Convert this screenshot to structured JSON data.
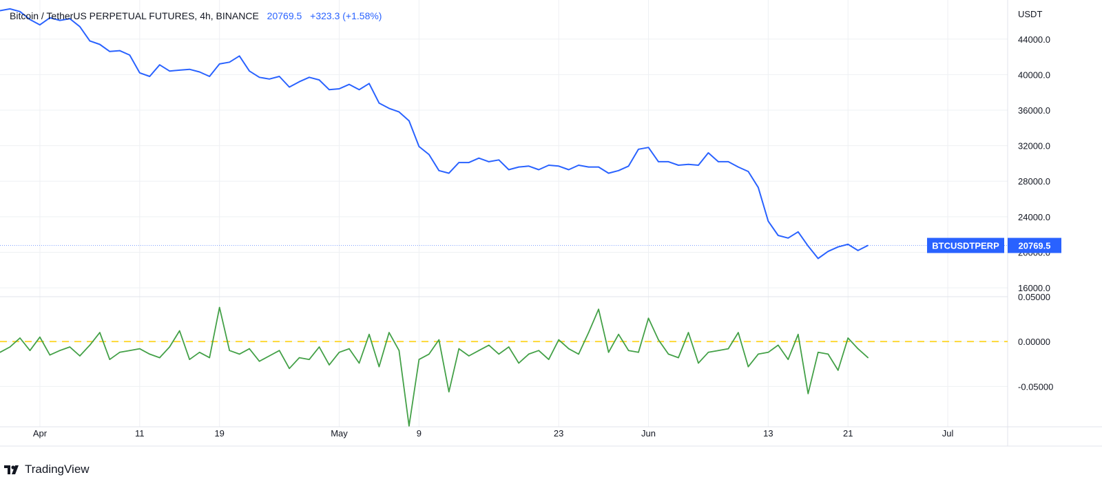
{
  "legend": {
    "symbol": "Bitcoin / TetherUS PERPETUAL FUTURES, 4h, BINANCE",
    "last": "20769.5",
    "change": "+323.3 (+1.58%)"
  },
  "price_label": {
    "ticker": "BTCUSDTPERP",
    "value": "20769.5"
  },
  "footer": {
    "brand": "TradingView"
  },
  "colors": {
    "price": "#2962ff",
    "funding": "#43a047",
    "zero_line": "#fdd835",
    "grid": "#eef0f3",
    "axis_text": "#131722",
    "label_bg": "#2962ff",
    "last_price_line": "#2962ff"
  },
  "chart_data": [
    {
      "type": "line",
      "y_axis_unit": "USDT",
      "y_ticks": [
        16000,
        20000,
        24000,
        28000,
        32000,
        36000,
        40000,
        44000
      ],
      "y_tick_labels": [
        "16000.0",
        "20000.0",
        "24000.0",
        "28000.0",
        "32000.0",
        "36000.0",
        "40000.0",
        "44000.0"
      ],
      "ylim": [
        15000,
        48400
      ],
      "x_ticks": [
        "Apr",
        "11",
        "19",
        "May",
        "9",
        "23",
        "Jun",
        "13",
        "21",
        "Jul"
      ],
      "x_tick_dates": [
        "2022-04-01",
        "2022-04-11",
        "2022-04-19",
        "2022-05-01",
        "2022-05-09",
        "2022-05-23",
        "2022-06-01",
        "2022-06-13",
        "2022-06-21",
        "2022-07-01"
      ],
      "x_range": [
        "2022-03-28",
        "2022-07-07"
      ],
      "series": [
        {
          "x": [
            "2022-03-28",
            "2022-03-29",
            "2022-03-30",
            "2022-03-31",
            "2022-04-01",
            "2022-04-02",
            "2022-04-03",
            "2022-04-04",
            "2022-04-05",
            "2022-04-06",
            "2022-04-07",
            "2022-04-08",
            "2022-04-09",
            "2022-04-10",
            "2022-04-11",
            "2022-04-12",
            "2022-04-13",
            "2022-04-14",
            "2022-04-15",
            "2022-04-16",
            "2022-04-17",
            "2022-04-18",
            "2022-04-19",
            "2022-04-20",
            "2022-04-21",
            "2022-04-22",
            "2022-04-23",
            "2022-04-24",
            "2022-04-25",
            "2022-04-26",
            "2022-04-27",
            "2022-04-28",
            "2022-04-29",
            "2022-04-30",
            "2022-05-01",
            "2022-05-02",
            "2022-05-03",
            "2022-05-04",
            "2022-05-05",
            "2022-05-06",
            "2022-05-07",
            "2022-05-08",
            "2022-05-09",
            "2022-05-10",
            "2022-05-11",
            "2022-05-12",
            "2022-05-13",
            "2022-05-14",
            "2022-05-15",
            "2022-05-16",
            "2022-05-17",
            "2022-05-18",
            "2022-05-19",
            "2022-05-20",
            "2022-05-21",
            "2022-05-22",
            "2022-05-23",
            "2022-05-24",
            "2022-05-25",
            "2022-05-26",
            "2022-05-27",
            "2022-05-28",
            "2022-05-29",
            "2022-05-30",
            "2022-05-31",
            "2022-06-01",
            "2022-06-02",
            "2022-06-03",
            "2022-06-04",
            "2022-06-05",
            "2022-06-06",
            "2022-06-07",
            "2022-06-08",
            "2022-06-09",
            "2022-06-10",
            "2022-06-11",
            "2022-06-12",
            "2022-06-13",
            "2022-06-14",
            "2022-06-15",
            "2022-06-16",
            "2022-06-17",
            "2022-06-18",
            "2022-06-19",
            "2022-06-20",
            "2022-06-21",
            "2022-06-22",
            "2022-06-23"
          ],
          "values": [
            47200,
            47400,
            47100,
            46200,
            45600,
            46400,
            46100,
            46300,
            45400,
            43800,
            43400,
            42600,
            42700,
            42200,
            40200,
            39800,
            41100,
            40400,
            40500,
            40600,
            40300,
            39800,
            41200,
            41400,
            42100,
            40400,
            39700,
            39500,
            39800,
            38600,
            39200,
            39700,
            39400,
            38300,
            38400,
            38900,
            38300,
            39000,
            36800,
            36200,
            35800,
            34800,
            31900,
            31000,
            29200,
            28900,
            30100,
            30100,
            30600,
            30200,
            30400,
            29300,
            29600,
            29700,
            29300,
            29800,
            29700,
            29300,
            29800,
            29600,
            29600,
            28900,
            29200,
            29700,
            31600,
            31800,
            30200,
            30200,
            29800,
            29900,
            29800,
            31200,
            30200,
            30200,
            29600,
            29100,
            27300,
            23500,
            21900,
            21600,
            22300,
            20700,
            19300,
            20100,
            20600,
            20900,
            20200,
            20769.5
          ]
        }
      ]
    },
    {
      "type": "line",
      "y_ticks": [
        -0.05,
        0.0,
        0.05
      ],
      "y_tick_labels": [
        "-0.05000",
        "0.00000",
        "0.05000"
      ],
      "ylim": [
        -0.095,
        0.05
      ],
      "reference_line": 0.0,
      "series": [
        {
          "x": [
            "2022-03-28",
            "2022-03-29",
            "2022-03-30",
            "2022-03-31",
            "2022-04-01",
            "2022-04-02",
            "2022-04-03",
            "2022-04-04",
            "2022-04-05",
            "2022-04-06",
            "2022-04-07",
            "2022-04-08",
            "2022-04-09",
            "2022-04-10",
            "2022-04-11",
            "2022-04-12",
            "2022-04-13",
            "2022-04-14",
            "2022-04-15",
            "2022-04-16",
            "2022-04-17",
            "2022-04-18",
            "2022-04-19",
            "2022-04-20",
            "2022-04-21",
            "2022-04-22",
            "2022-04-23",
            "2022-04-24",
            "2022-04-25",
            "2022-04-26",
            "2022-04-27",
            "2022-04-28",
            "2022-04-29",
            "2022-04-30",
            "2022-05-01",
            "2022-05-02",
            "2022-05-03",
            "2022-05-04",
            "2022-05-05",
            "2022-05-06",
            "2022-05-07",
            "2022-05-08",
            "2022-05-09",
            "2022-05-10",
            "2022-05-11",
            "2022-05-12",
            "2022-05-13",
            "2022-05-14",
            "2022-05-15",
            "2022-05-16",
            "2022-05-17",
            "2022-05-18",
            "2022-05-19",
            "2022-05-20",
            "2022-05-21",
            "2022-05-22",
            "2022-05-23",
            "2022-05-24",
            "2022-05-25",
            "2022-05-26",
            "2022-05-27",
            "2022-05-28",
            "2022-05-29",
            "2022-05-30",
            "2022-05-31",
            "2022-06-01",
            "2022-06-02",
            "2022-06-03",
            "2022-06-04",
            "2022-06-05",
            "2022-06-06",
            "2022-06-07",
            "2022-06-08",
            "2022-06-09",
            "2022-06-10",
            "2022-06-11",
            "2022-06-12",
            "2022-06-13",
            "2022-06-14",
            "2022-06-15",
            "2022-06-16",
            "2022-06-17",
            "2022-06-18",
            "2022-06-19",
            "2022-06-20",
            "2022-06-21",
            "2022-06-22",
            "2022-06-23"
          ],
          "values": [
            -0.012,
            -0.006,
            0.004,
            -0.01,
            0.005,
            -0.015,
            -0.01,
            -0.006,
            -0.016,
            -0.004,
            0.01,
            -0.02,
            -0.012,
            -0.01,
            -0.008,
            -0.014,
            -0.018,
            -0.006,
            0.012,
            -0.02,
            -0.012,
            -0.018,
            0.038,
            -0.01,
            -0.014,
            -0.008,
            -0.022,
            -0.016,
            -0.01,
            -0.03,
            -0.018,
            -0.02,
            -0.006,
            -0.026,
            -0.012,
            -0.008,
            -0.024,
            0.008,
            -0.028,
            0.01,
            -0.01,
            -0.094,
            -0.02,
            -0.014,
            0.002,
            -0.056,
            -0.008,
            -0.016,
            -0.01,
            -0.004,
            -0.014,
            -0.006,
            -0.024,
            -0.014,
            -0.01,
            -0.02,
            0.002,
            -0.008,
            -0.014,
            0.01,
            0.036,
            -0.012,
            0.008,
            -0.01,
            -0.012,
            0.026,
            0.002,
            -0.014,
            -0.018,
            0.01,
            -0.024,
            -0.012,
            -0.01,
            -0.008,
            0.01,
            -0.028,
            -0.014,
            -0.012,
            -0.004,
            -0.02,
            0.008,
            -0.058,
            -0.012,
            -0.014,
            -0.032,
            0.004,
            -0.008,
            -0.018
          ]
        }
      ]
    }
  ]
}
